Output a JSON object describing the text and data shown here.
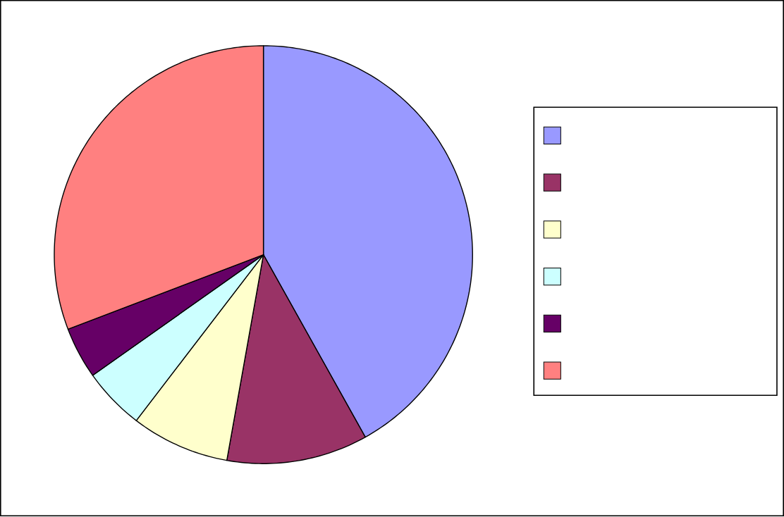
{
  "chart_data": {
    "type": "pie",
    "categories": [
      null,
      null,
      null,
      null,
      null,
      null
    ],
    "values": [
      41.9,
      10.9,
      7.6,
      4.8,
      4.0,
      30.8
    ],
    "colors": [
      "#9999ff",
      "#993366",
      "#ffffcc",
      "#ccffff",
      "#660066",
      "#ff8080"
    ]
  }
}
